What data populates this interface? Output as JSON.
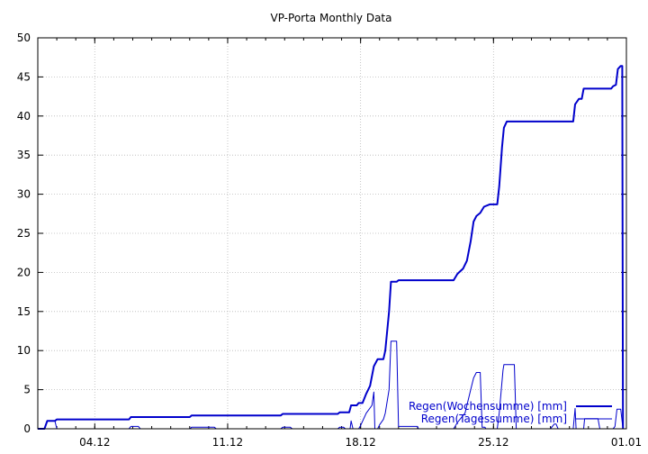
{
  "chart_data": {
    "type": "line",
    "title": "VP-Porta Monthly Data",
    "xlabel": "",
    "ylabel": "",
    "ylim": [
      0,
      50
    ],
    "yticks": [
      0,
      5,
      10,
      15,
      20,
      25,
      30,
      35,
      40,
      45,
      50
    ],
    "xlim": [
      0,
      31
    ],
    "xticks": [
      {
        "x": 3,
        "label": "04.12"
      },
      {
        "x": 10,
        "label": "11.12"
      },
      {
        "x": 17,
        "label": "18.12"
      },
      {
        "x": 24,
        "label": "25.12"
      },
      {
        "x": 31,
        "label": "01.01"
      }
    ],
    "grid": true,
    "legend_position": "bottom-right",
    "series": [
      {
        "name": "Regen(Wochensumme) [mm]",
        "color": "#0000cc",
        "style": "thick",
        "points": [
          [
            0,
            0
          ],
          [
            0.35,
            0
          ],
          [
            0.5,
            1.0
          ],
          [
            0.9,
            1.0
          ],
          [
            1.0,
            1.2
          ],
          [
            4.8,
            1.2
          ],
          [
            4.9,
            1.5
          ],
          [
            8.0,
            1.5
          ],
          [
            8.1,
            1.7
          ],
          [
            12.8,
            1.7
          ],
          [
            12.9,
            1.9
          ],
          [
            15.8,
            1.9
          ],
          [
            15.9,
            2.1
          ],
          [
            16.4,
            2.1
          ],
          [
            16.5,
            3.0
          ],
          [
            16.8,
            3.0
          ],
          [
            16.9,
            3.3
          ],
          [
            17.1,
            3.3
          ],
          [
            17.3,
            4.5
          ],
          [
            17.5,
            5.5
          ],
          [
            17.7,
            8.0
          ],
          [
            17.9,
            8.9
          ],
          [
            18.2,
            8.9
          ],
          [
            18.3,
            10.0
          ],
          [
            18.5,
            15.0
          ],
          [
            18.6,
            18.8
          ],
          [
            18.9,
            18.8
          ],
          [
            19.0,
            19.0
          ],
          [
            21.9,
            19.0
          ],
          [
            22.1,
            19.8
          ],
          [
            22.4,
            20.5
          ],
          [
            22.6,
            21.5
          ],
          [
            22.8,
            24.0
          ],
          [
            22.95,
            26.5
          ],
          [
            23.1,
            27.2
          ],
          [
            23.3,
            27.6
          ],
          [
            23.5,
            28.4
          ],
          [
            23.8,
            28.7
          ],
          [
            24.2,
            28.7
          ],
          [
            24.3,
            31.0
          ],
          [
            24.45,
            36.0
          ],
          [
            24.55,
            38.5
          ],
          [
            24.7,
            39.3
          ],
          [
            28.2,
            39.3
          ],
          [
            28.3,
            41.5
          ],
          [
            28.5,
            42.2
          ],
          [
            28.65,
            42.2
          ],
          [
            28.75,
            43.5
          ],
          [
            30.2,
            43.5
          ],
          [
            30.3,
            43.8
          ],
          [
            30.45,
            44.0
          ],
          [
            30.55,
            46.0
          ],
          [
            30.7,
            46.4
          ],
          [
            30.78,
            46.4
          ],
          [
            30.82,
            0
          ]
        ]
      },
      {
        "name": "Regen(Tagessumme) [mm]",
        "color": "#0000cc",
        "style": "thin",
        "points": [
          [
            0,
            0
          ],
          [
            0.35,
            0
          ],
          [
            0.5,
            1.0
          ],
          [
            0.9,
            1.0
          ],
          [
            1.0,
            0
          ],
          [
            4.8,
            0
          ],
          [
            4.9,
            0.3
          ],
          [
            5.3,
            0.3
          ],
          [
            5.4,
            0
          ],
          [
            8.0,
            0
          ],
          [
            8.1,
            0.2
          ],
          [
            9.3,
            0.2
          ],
          [
            9.4,
            0
          ],
          [
            12.8,
            0
          ],
          [
            12.9,
            0.2
          ],
          [
            13.3,
            0.2
          ],
          [
            13.4,
            0
          ],
          [
            15.8,
            0
          ],
          [
            15.9,
            0.2
          ],
          [
            16.1,
            0.2
          ],
          [
            16.2,
            0
          ],
          [
            16.45,
            0
          ],
          [
            16.5,
            1.0
          ],
          [
            16.6,
            0
          ],
          [
            16.9,
            0
          ],
          [
            17.0,
            0.4
          ],
          [
            17.3,
            2.0
          ],
          [
            17.6,
            3.0
          ],
          [
            17.7,
            4.7
          ],
          [
            17.75,
            0
          ],
          [
            17.9,
            0
          ],
          [
            18.0,
            0.5
          ],
          [
            18.2,
            1.2
          ],
          [
            18.3,
            2.0
          ],
          [
            18.5,
            5.0
          ],
          [
            18.6,
            11.2
          ],
          [
            18.9,
            11.2
          ],
          [
            19.0,
            0.3
          ],
          [
            20.0,
            0.3
          ],
          [
            20.05,
            0
          ],
          [
            21.9,
            0
          ],
          [
            22.1,
            0.8
          ],
          [
            22.5,
            2.0
          ],
          [
            22.8,
            5.0
          ],
          [
            22.95,
            6.5
          ],
          [
            23.1,
            7.2
          ],
          [
            23.3,
            7.2
          ],
          [
            23.4,
            0.2
          ],
          [
            23.55,
            0.2
          ],
          [
            23.6,
            0
          ],
          [
            24.2,
            0
          ],
          [
            24.3,
            2.0
          ],
          [
            24.5,
            7.5
          ],
          [
            24.55,
            8.2
          ],
          [
            25.1,
            8.2
          ],
          [
            25.2,
            0
          ],
          [
            27.0,
            0
          ],
          [
            27.2,
            0.6
          ],
          [
            27.3,
            0.6
          ],
          [
            27.4,
            0
          ],
          [
            28.2,
            0
          ],
          [
            28.3,
            2.6
          ],
          [
            28.35,
            0
          ],
          [
            28.75,
            0
          ],
          [
            28.8,
            1.3
          ],
          [
            29.5,
            1.3
          ],
          [
            29.6,
            0
          ],
          [
            30.3,
            0
          ],
          [
            30.4,
            0.3
          ],
          [
            30.5,
            2.5
          ],
          [
            30.7,
            2.5
          ],
          [
            30.82,
            0
          ]
        ]
      }
    ]
  }
}
